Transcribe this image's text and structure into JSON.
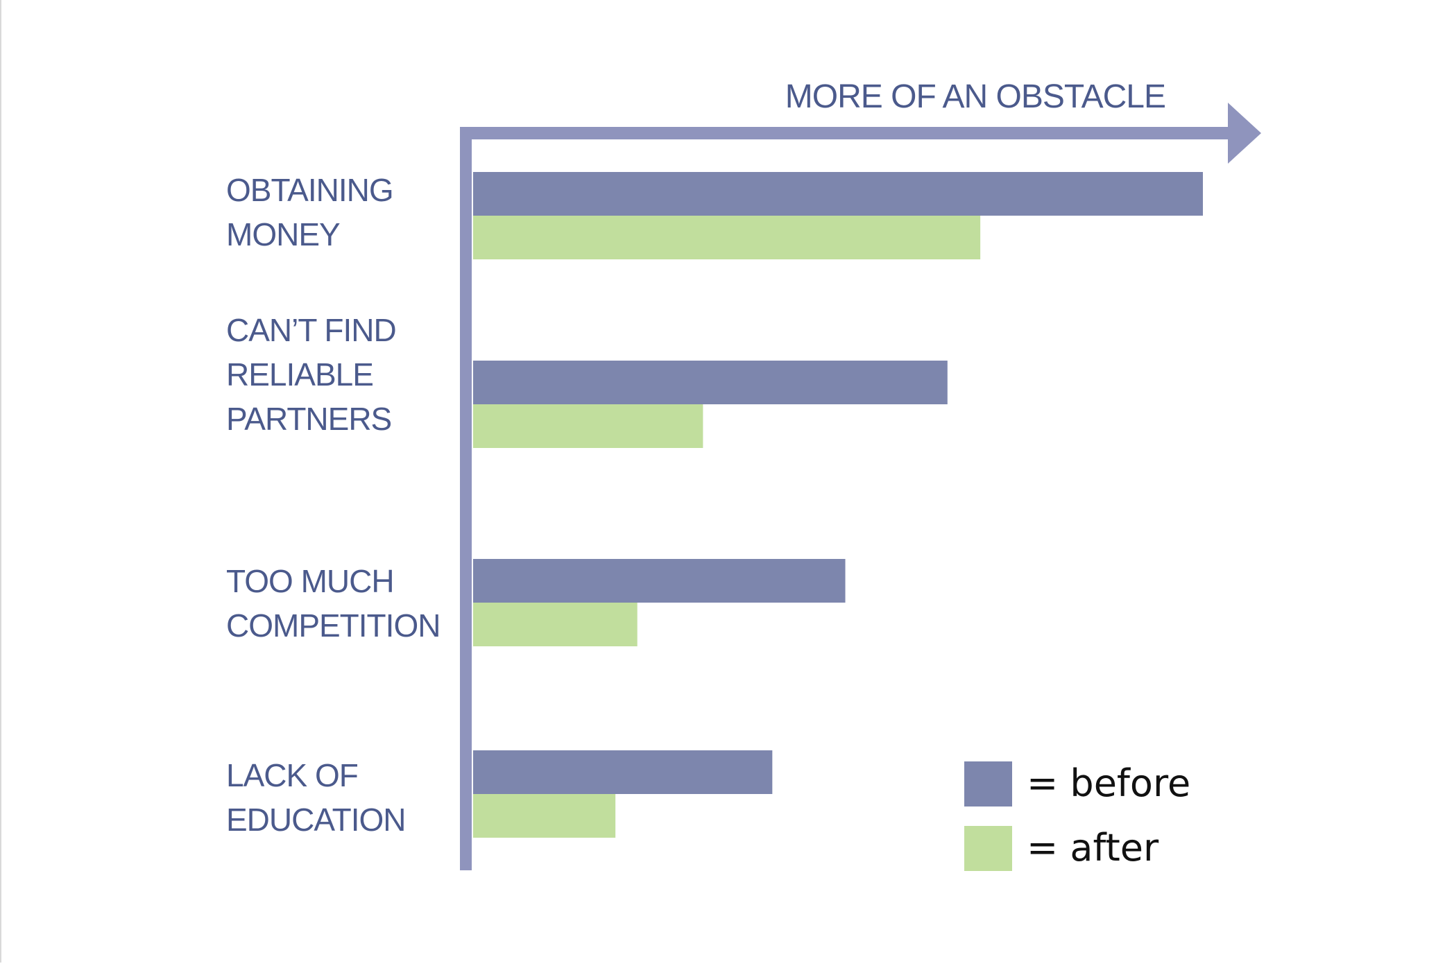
{
  "chart_data": {
    "type": "bar",
    "orientation": "horizontal",
    "axis_title": "MORE OF AN OBSTACLE",
    "categories": [
      [
        "OBTAINING",
        "MONEY"
      ],
      [
        "CAN’T FIND",
        "RELIABLE",
        "PARTNERS"
      ],
      [
        "TOO MUCH",
        "COMPETITION"
      ],
      [
        "LACK OF",
        "EDUCATION"
      ]
    ],
    "series": [
      {
        "name": "= before",
        "color": "#7d86ad",
        "values": [
          100,
          65,
          51,
          41
        ]
      },
      {
        "name": "= after",
        "color": "#c1de9d",
        "values": [
          69.5,
          31.5,
          22.5,
          19.5
        ]
      }
    ],
    "xlim": [
      0,
      100
    ],
    "grid": false,
    "legend_position": "bottom-right",
    "axis_color": "#8f94bd",
    "label_color": "#4b5a8c",
    "legend_text_color": "#111111"
  }
}
